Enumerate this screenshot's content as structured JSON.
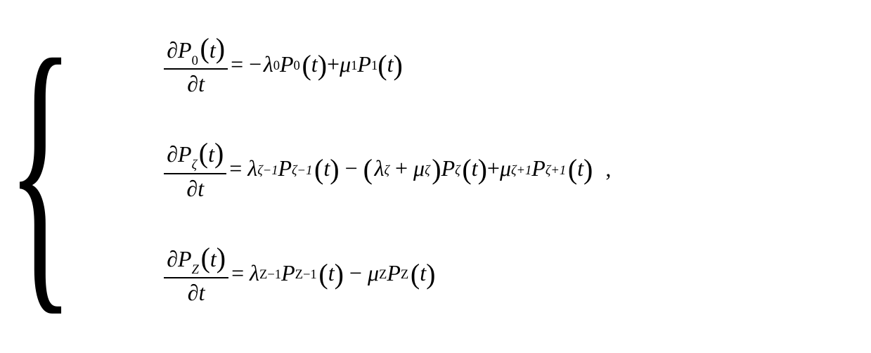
{
  "colors": {
    "text": "#000000",
    "background": "#ffffff"
  },
  "typography": {
    "fontFamily": "Times New Roman",
    "baseFontSize": 32,
    "braceFontSize": 440
  },
  "sym": {
    "partial": "∂",
    "lambda": "λ",
    "mu": "μ",
    "zeta": "ζ",
    "minus": "−",
    "plus": "+",
    "eq": "=",
    "lpar": "(",
    "rpar": ")",
    "comma": ","
  },
  "vars": {
    "P": "P",
    "t": "t",
    "sub0": "0",
    "sub1": "1",
    "subZ": "Z",
    "subZm1": "Z−1",
    "subZetaM1": "ζ−1",
    "subZetaP1": "ζ+1"
  }
}
